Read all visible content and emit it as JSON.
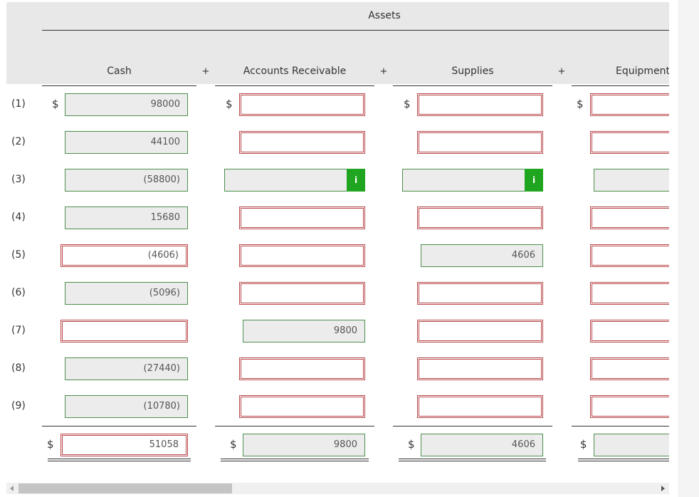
{
  "header": {
    "group_title": "Assets",
    "columns": [
      "Cash",
      "Accounts Receivable",
      "Supplies",
      "Equipment"
    ],
    "operator": "+"
  },
  "currency": "$",
  "info_icon": "i",
  "rows": [
    {
      "label": "(1)",
      "show_currency": true,
      "cells": [
        {
          "state": "filled",
          "value": "98000"
        },
        {
          "state": "error"
        },
        {
          "state": "error"
        },
        {
          "state": "error"
        }
      ]
    },
    {
      "label": "(2)",
      "show_currency": false,
      "cells": [
        {
          "state": "filled",
          "value": "44100"
        },
        {
          "state": "error"
        },
        {
          "state": "error"
        },
        {
          "state": "error"
        }
      ]
    },
    {
      "label": "(3)",
      "show_currency": false,
      "cells": [
        {
          "state": "filled",
          "value": "(58800)"
        },
        {
          "state": "info"
        },
        {
          "state": "info"
        },
        {
          "state": "filled"
        }
      ]
    },
    {
      "label": "(4)",
      "show_currency": false,
      "cells": [
        {
          "state": "filled",
          "value": "15680"
        },
        {
          "state": "error"
        },
        {
          "state": "error"
        },
        {
          "state": "error"
        }
      ]
    },
    {
      "label": "(5)",
      "show_currency": false,
      "cells": [
        {
          "state": "error",
          "value": "(4606)"
        },
        {
          "state": "error"
        },
        {
          "state": "filled",
          "value": "4606"
        },
        {
          "state": "error"
        }
      ]
    },
    {
      "label": "(6)",
      "show_currency": false,
      "cells": [
        {
          "state": "filled",
          "value": "(5096)"
        },
        {
          "state": "error"
        },
        {
          "state": "error"
        },
        {
          "state": "error"
        }
      ]
    },
    {
      "label": "(7)",
      "show_currency": false,
      "cells": [
        {
          "state": "error"
        },
        {
          "state": "filled",
          "value": "9800"
        },
        {
          "state": "error"
        },
        {
          "state": "error"
        }
      ]
    },
    {
      "label": "(8)",
      "show_currency": false,
      "cells": [
        {
          "state": "filled",
          "value": "(27440)"
        },
        {
          "state": "error"
        },
        {
          "state": "error"
        },
        {
          "state": "error"
        }
      ]
    },
    {
      "label": "(9)",
      "show_currency": false,
      "cells": [
        {
          "state": "filled",
          "value": "(10780)"
        },
        {
          "state": "error"
        },
        {
          "state": "error"
        },
        {
          "state": "error"
        }
      ]
    }
  ],
  "totals": {
    "show_currency": true,
    "cells": [
      {
        "state": "error",
        "value": "51058"
      },
      {
        "state": "filled",
        "value": "9800"
      },
      {
        "state": "filled",
        "value": "4606"
      },
      {
        "state": "filled"
      }
    ]
  }
}
